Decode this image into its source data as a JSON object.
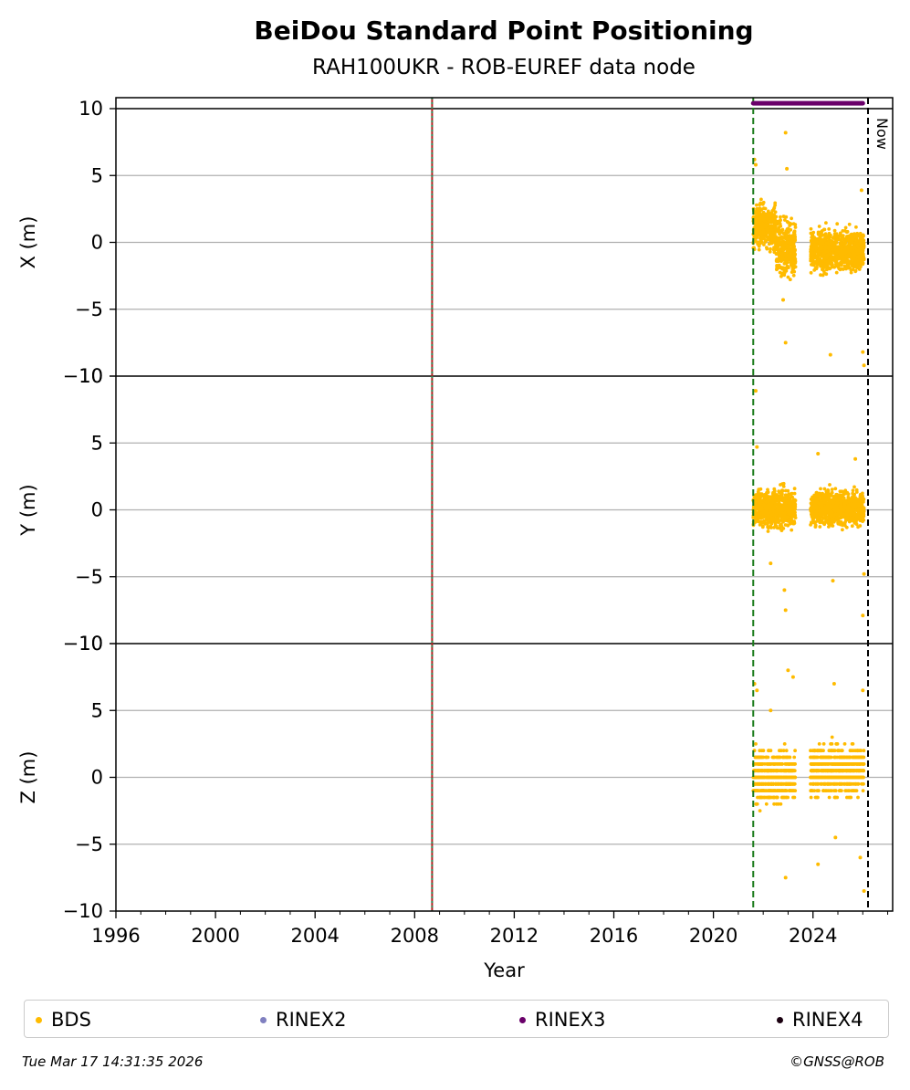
{
  "chart_data": {
    "type": "scatter",
    "title": "BeiDou Standard Point Positioning",
    "subtitle": "RAH100UKR - ROB-EUREF data node",
    "xlabel": "Year",
    "xlim": [
      1996,
      2027.2
    ],
    "x_ticks": [
      "1996",
      "2000",
      "2004",
      "2008",
      "2012",
      "2016",
      "2020",
      "2024"
    ],
    "grid": "horizontal",
    "panels": [
      {
        "ylabel": "X (m)",
        "ylim": [
          -10,
          10
        ],
        "y_ticks": [
          "10",
          "5",
          "0",
          "−5",
          "−10"
        ]
      },
      {
        "ylabel": "Y (m)",
        "ylim": [
          -10,
          10
        ],
        "y_ticks": [
          "10",
          "5",
          "0",
          "−5",
          "−10"
        ]
      },
      {
        "ylabel": "Z (m)",
        "ylim": [
          -10,
          10
        ],
        "y_ticks": [
          "10",
          "5",
          "0",
          "−5",
          "−10"
        ]
      }
    ],
    "vertical_lines": [
      {
        "x": 2008.7,
        "color": "#b22222",
        "style": "solid"
      },
      {
        "x": 2008.7,
        "color": "#2e8b57",
        "style": "dotted"
      },
      {
        "x": 2021.6,
        "color": "#1a7a1a",
        "style": "dashed"
      },
      {
        "x": 2026.21,
        "color": "#000000",
        "style": "dashed",
        "label": "Now"
      }
    ],
    "rinex_bar": {
      "series": "RINEX3",
      "start": 2021.6,
      "end": 2026.0,
      "y": 10.4
    },
    "series": [
      {
        "name": "BDS",
        "color": "#ffbb00",
        "x_range": [
          2021.6,
          2026.05
        ],
        "gaps": [
          [
            2023.3,
            2023.9
          ]
        ],
        "X": {
          "segments": [
            {
              "from": 2021.6,
              "to": 2022.5,
              "mean": 1.2,
              "spread": 1.4
            },
            {
              "from": 2022.5,
              "to": 2023.3,
              "mean": -0.5,
              "spread": 1.8
            },
            {
              "from": 2023.9,
              "to": 2026.05,
              "mean": -0.6,
              "spread": 1.3
            }
          ],
          "outliers": [
            [
              2021.65,
              6.2
            ],
            [
              2021.7,
              5.8
            ],
            [
              2022.9,
              8.2
            ],
            [
              2022.95,
              5.5
            ],
            [
              2022.9,
              -7.5
            ],
            [
              2024.7,
              -8.4
            ],
            [
              2025.95,
              3.9
            ],
            [
              2026.0,
              -8.2
            ],
            [
              2026.05,
              -9.2
            ],
            [
              2022.8,
              -4.3
            ]
          ]
        },
        "Y": {
          "segments": [
            {
              "from": 2021.6,
              "to": 2023.3,
              "mean": 0.1,
              "spread": 1.2
            },
            {
              "from": 2023.9,
              "to": 2026.05,
              "mean": 0.1,
              "spread": 1.1
            }
          ],
          "outliers": [
            [
              2021.7,
              8.9
            ],
            [
              2021.75,
              4.7
            ],
            [
              2022.9,
              -7.5
            ],
            [
              2022.85,
              -6.0
            ],
            [
              2022.3,
              -4.0
            ],
            [
              2024.2,
              4.2
            ],
            [
              2024.8,
              -5.3
            ],
            [
              2025.7,
              3.8
            ],
            [
              2026.0,
              -7.9
            ],
            [
              2026.05,
              -4.8
            ]
          ]
        },
        "Z": {
          "segments": [
            {
              "from": 2021.6,
              "to": 2023.3,
              "mean": 0.0,
              "spread": 1.6
            },
            {
              "from": 2023.9,
              "to": 2026.05,
              "mean": 0.5,
              "spread": 1.5
            }
          ],
          "outliers": [
            [
              2021.65,
              7.0
            ],
            [
              2021.75,
              6.5
            ],
            [
              2023.0,
              8.0
            ],
            [
              2023.2,
              7.5
            ],
            [
              2022.3,
              5.0
            ],
            [
              2024.85,
              7.0
            ],
            [
              2026.0,
              6.5
            ],
            [
              2022.9,
              -7.5
            ],
            [
              2024.2,
              -6.5
            ],
            [
              2026.05,
              -8.5
            ],
            [
              2025.9,
              -6.0
            ],
            [
              2024.9,
              -4.5
            ]
          ]
        }
      }
    ]
  },
  "legend": {
    "items": [
      {
        "label": "BDS",
        "color": "#ffbb00"
      },
      {
        "label": "RINEX2",
        "color": "#8080c0"
      },
      {
        "label": "RINEX3",
        "color": "#6a006a"
      },
      {
        "label": "RINEX4",
        "color": "#1a0010"
      }
    ]
  },
  "footer": {
    "timestamp": "Tue Mar 17 14:31:35 2026",
    "credit": "©GNSS@ROB"
  }
}
